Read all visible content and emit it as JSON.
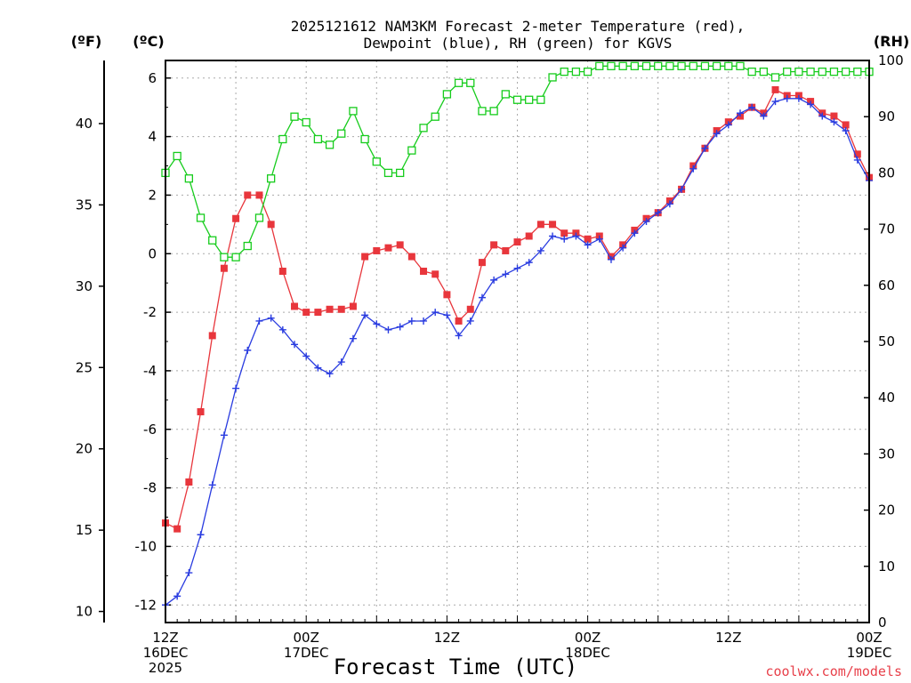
{
  "chart_data": {
    "type": "line",
    "title_line1": "2025121612 NAM3KM Forecast 2-meter Temperature (red),",
    "title_line2": "Dewpoint (blue), RH (green) for KGVS",
    "xlabel": "Forecast Time (UTC)",
    "credit": "coolwx.com/models",
    "left_outer_unit": "(ºF)",
    "left_inner_unit": "(ºC)",
    "right_unit": "(RH)",
    "x_forecast_hours_range": [
      0,
      60
    ],
    "celsius_range": [
      -12.6,
      6.6
    ],
    "rh_range": [
      0,
      100
    ],
    "x_ticks": [
      {
        "hour": 0,
        "lines": [
          "12Z",
          "16DEC",
          "2025"
        ]
      },
      {
        "hour": 12,
        "lines": [
          "00Z",
          "17DEC"
        ]
      },
      {
        "hour": 24,
        "lines": [
          "12Z"
        ]
      },
      {
        "hour": 36,
        "lines": [
          "00Z",
          "18DEC"
        ]
      },
      {
        "hour": 48,
        "lines": [
          "12Z"
        ]
      },
      {
        "hour": 60,
        "lines": [
          "00Z",
          "19DEC"
        ]
      }
    ],
    "celsius_ticks": [
      6,
      4,
      2,
      0,
      -2,
      -4,
      -6,
      -8,
      -10,
      -12
    ],
    "fahrenheit_ticks": [
      40,
      35,
      30,
      25,
      20,
      15,
      10
    ],
    "rh_ticks": [
      100,
      90,
      80,
      70,
      60,
      50,
      40,
      30,
      20,
      10,
      0
    ],
    "series": [
      {
        "name": "Temperature",
        "units": "C",
        "color": "#e8363c",
        "marker": "filled-square",
        "values": [
          -9.2,
          -9.4,
          -7.8,
          -5.4,
          -2.8,
          -0.5,
          1.2,
          2.0,
          2.0,
          1.0,
          -0.6,
          -1.8,
          -2.0,
          -2.0,
          -1.9,
          -1.9,
          -1.8,
          -0.1,
          0.1,
          0.2,
          0.3,
          -0.1,
          -0.6,
          -0.7,
          -1.4,
          -2.3,
          -1.9,
          -0.3,
          0.3,
          0.1,
          0.4,
          0.6,
          1.0,
          1.0,
          0.7,
          0.7,
          0.5,
          0.6,
          -0.1,
          0.3,
          0.8,
          1.2,
          1.4,
          1.8,
          2.2,
          3.0,
          3.6,
          4.2,
          4.5,
          4.7,
          5.0,
          4.8,
          5.6,
          5.4,
          5.4,
          5.2,
          4.8,
          4.7,
          4.4,
          3.4,
          2.6
        ]
      },
      {
        "name": "Dewpoint",
        "units": "C",
        "color": "#2a3ce0",
        "marker": "plus",
        "values": [
          -12.0,
          -11.7,
          -10.9,
          -9.6,
          -7.9,
          -6.2,
          -4.6,
          -3.3,
          -2.3,
          -2.2,
          -2.6,
          -3.1,
          -3.5,
          -3.9,
          -4.1,
          -3.7,
          -2.9,
          -2.1,
          -2.4,
          -2.6,
          -2.5,
          -2.3,
          -2.3,
          -2.0,
          -2.1,
          -2.8,
          -2.3,
          -1.5,
          -0.9,
          -0.7,
          -0.5,
          -0.3,
          0.1,
          0.6,
          0.5,
          0.6,
          0.3,
          0.5,
          -0.2,
          0.2,
          0.7,
          1.1,
          1.4,
          1.7,
          2.2,
          2.9,
          3.6,
          4.1,
          4.4,
          4.8,
          5.0,
          4.7,
          5.2,
          5.3,
          5.3,
          5.1,
          4.7,
          4.5,
          4.2,
          3.2,
          2.5
        ]
      },
      {
        "name": "RH",
        "units": "%",
        "color": "#16cc1c",
        "marker": "open-square",
        "values": [
          80,
          83,
          79,
          72,
          68,
          65,
          65,
          67,
          72,
          79,
          86,
          90,
          89,
          86,
          85,
          87,
          91,
          86,
          82,
          80,
          80,
          84,
          88,
          90,
          94,
          96,
          96,
          91,
          91,
          94,
          93,
          93,
          93,
          97,
          98,
          98,
          98,
          99,
          99,
          99,
          99,
          99,
          99,
          99,
          99,
          99,
          99,
          99,
          99,
          99,
          98,
          98,
          97,
          98,
          98,
          98,
          98,
          98,
          98,
          98,
          98
        ]
      }
    ]
  }
}
